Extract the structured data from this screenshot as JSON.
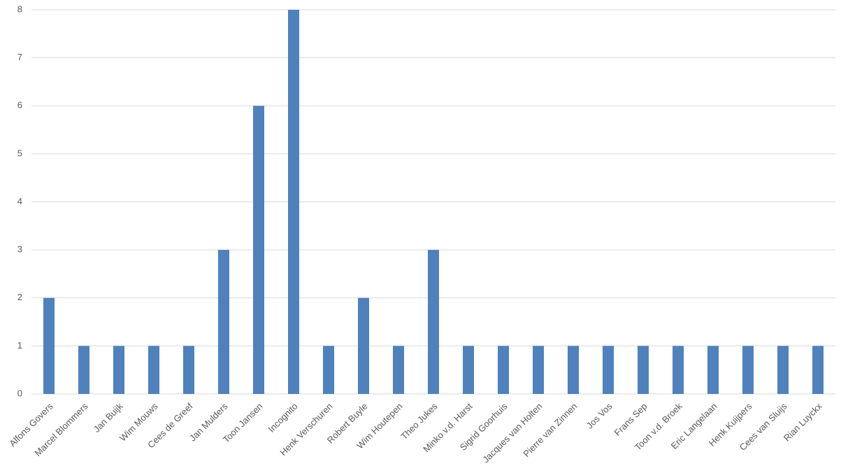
{
  "chart_data": {
    "type": "bar",
    "categories": [
      "Alfons Govers",
      "Marcel Blommers",
      "Jan Buijk",
      "Wim Mouws",
      "Cees de Greef",
      "Jan Mulders",
      "Toon Jansen",
      "Incognito",
      "Henk Verschuren",
      "Robert Buyle",
      "Wim Houtepen",
      "Theo Jukes",
      "Minko v.d. Harst",
      "Sigrid Goorhuis",
      "Jacques van Holten",
      "Pierre van Zinnen",
      "Jos Vos",
      "Frans Sep",
      "Toon v.d. Broek",
      "Eric Langelaan",
      "Henk Kuijpers",
      "Cees van Sluijs",
      "Rian Luyckx"
    ],
    "values": [
      2,
      1,
      1,
      1,
      1,
      3,
      6,
      8,
      1,
      2,
      1,
      3,
      1,
      1,
      1,
      1,
      1,
      1,
      1,
      1,
      1,
      1,
      1
    ],
    "color": "#4f81bd",
    "ylim": [
      0,
      8
    ],
    "yticks": [
      0,
      1,
      2,
      3,
      4,
      5,
      6,
      7,
      8
    ],
    "grid": true
  }
}
